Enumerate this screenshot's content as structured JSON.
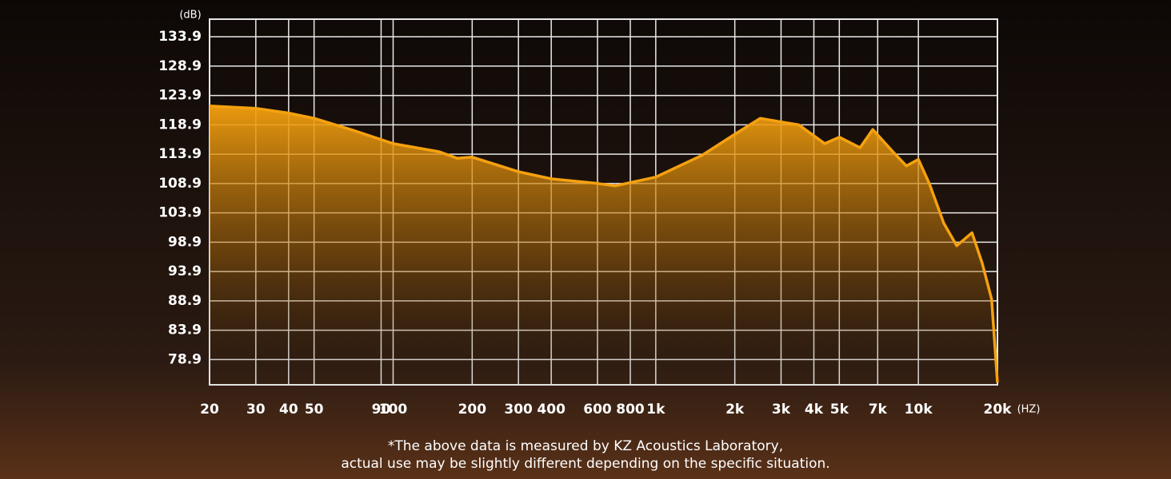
{
  "chart_data": {
    "type": "area",
    "x_label": "(HZ)",
    "y_label": "(dB)",
    "x_scale": "log",
    "grid": true,
    "color": "#f5a10f",
    "xlim": [
      20,
      20000
    ],
    "ylim": [
      74.6,
      136.9
    ],
    "xticks": [
      20,
      30,
      40,
      50,
      90,
      100,
      200,
      300,
      400,
      600,
      800,
      {
        "value": 1000,
        "label": "1k"
      },
      {
        "value": 2000,
        "label": "2k"
      },
      {
        "value": 3000,
        "label": "3k"
      },
      {
        "value": 4000,
        "label": "4k"
      },
      {
        "value": 5000,
        "label": "5k"
      },
      {
        "value": 7000,
        "label": "7k"
      },
      {
        "value": 10000,
        "label": "10k"
      },
      {
        "value": 20000,
        "label": "20k"
      }
    ],
    "yticks": [
      133.9,
      128.9,
      123.9,
      118.9,
      113.9,
      108.9,
      103.9,
      98.9,
      93.9,
      88.9,
      83.9,
      78.9
    ],
    "x": [
      20,
      30,
      40,
      50,
      70,
      100,
      150,
      175,
      200,
      300,
      400,
      600,
      700,
      1000,
      1500,
      2000,
      2500,
      3000,
      3500,
      4400,
      5000,
      6000,
      6700,
      8000,
      9000,
      10000,
      11000,
      12500,
      14000,
      16000,
      17500,
      19000,
      20000
    ],
    "values": [
      122.1,
      121.7,
      120.9,
      120.0,
      118.0,
      115.7,
      114.3,
      113.2,
      113.4,
      110.9,
      109.7,
      108.9,
      108.5,
      110.0,
      113.7,
      117.3,
      120.0,
      119.4,
      118.9,
      115.7,
      116.8,
      115.0,
      118.1,
      114.3,
      111.9,
      113.0,
      108.9,
      102.1,
      98.3,
      100.5,
      95.3,
      89.2,
      75.0
    ],
    "footnote": [
      "*The above data is measured by KZ Acoustics Laboratory,",
      "actual use may be slightly different depending on the specific situation."
    ]
  }
}
